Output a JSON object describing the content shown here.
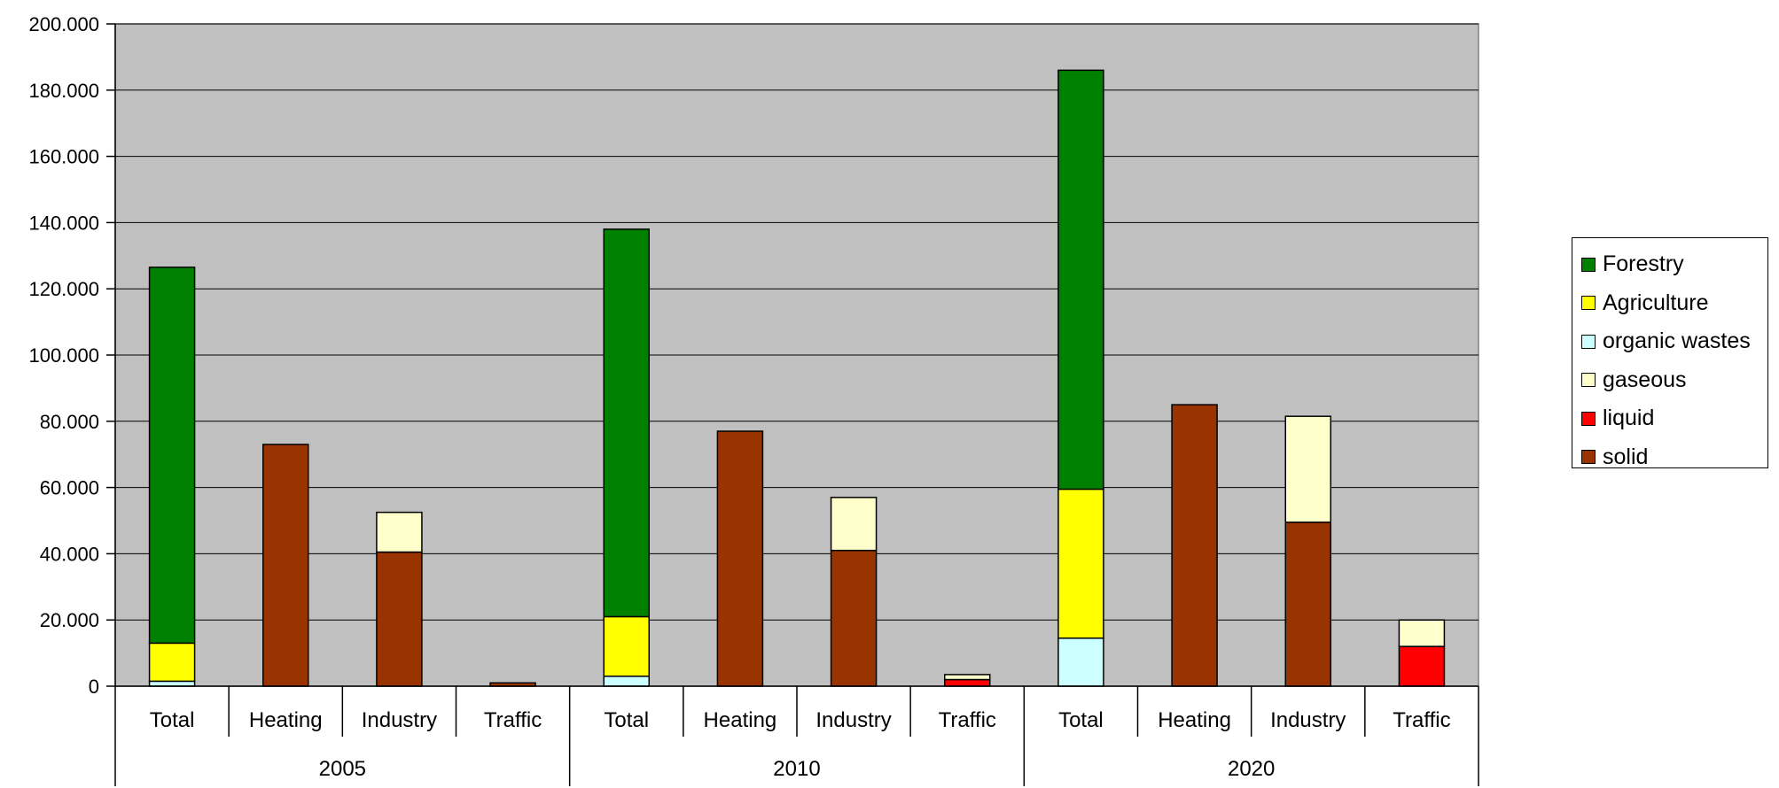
{
  "chart_data": {
    "type": "bar",
    "stacked": true,
    "title": "",
    "xlabel": "",
    "ylabel": "",
    "ylim": [
      0,
      200000
    ],
    "yticks": [
      0,
      20000,
      40000,
      60000,
      80000,
      100000,
      120000,
      140000,
      160000,
      180000,
      200000
    ],
    "ytick_labels": [
      "0",
      "20.000",
      "40.000",
      "60.000",
      "80.000",
      "100.000",
      "120.000",
      "140.000",
      "160.000",
      "180.000",
      "200.000"
    ],
    "grid": true,
    "legend_position": "right",
    "groups": [
      {
        "label": "2005",
        "categories": [
          "Total",
          "Heating",
          "Industry",
          "Traffic"
        ]
      },
      {
        "label": "2010",
        "categories": [
          "Total",
          "Heating",
          "Industry",
          "Traffic"
        ]
      },
      {
        "label": "2020",
        "categories": [
          "Total",
          "Heating",
          "Industry",
          "Traffic"
        ]
      }
    ],
    "series": [
      {
        "name": "solid",
        "color": "#993300",
        "values": [
          0,
          73000,
          40500,
          1000,
          0,
          77000,
          41000,
          0,
          0,
          85000,
          49500,
          0
        ]
      },
      {
        "name": "liquid",
        "color": "#FF0000",
        "values": [
          0,
          0,
          0,
          0,
          0,
          0,
          0,
          2000,
          0,
          0,
          0,
          12000
        ]
      },
      {
        "name": "gaseous",
        "color": "#FFFFCC",
        "values": [
          0,
          0,
          12000,
          0,
          0,
          0,
          16000,
          1500,
          0,
          0,
          32000,
          8000
        ]
      },
      {
        "name": "organic wastes",
        "color": "#CCFFFF",
        "values": [
          1500,
          0,
          0,
          0,
          3000,
          0,
          0,
          0,
          14500,
          0,
          0,
          0
        ]
      },
      {
        "name": "Agriculture",
        "color": "#FFFF00",
        "values": [
          11500,
          0,
          0,
          0,
          18000,
          0,
          0,
          0,
          45000,
          0,
          0,
          0
        ]
      },
      {
        "name": "Forestry",
        "color": "#008000",
        "values": [
          113500,
          0,
          0,
          0,
          117000,
          0,
          0,
          0,
          126500,
          0,
          0,
          0
        ]
      }
    ],
    "legend_order": [
      "Forestry",
      "Agriculture",
      "organic wastes",
      "gaseous",
      "liquid",
      "solid"
    ],
    "plot_background": "#C0C0C0"
  }
}
